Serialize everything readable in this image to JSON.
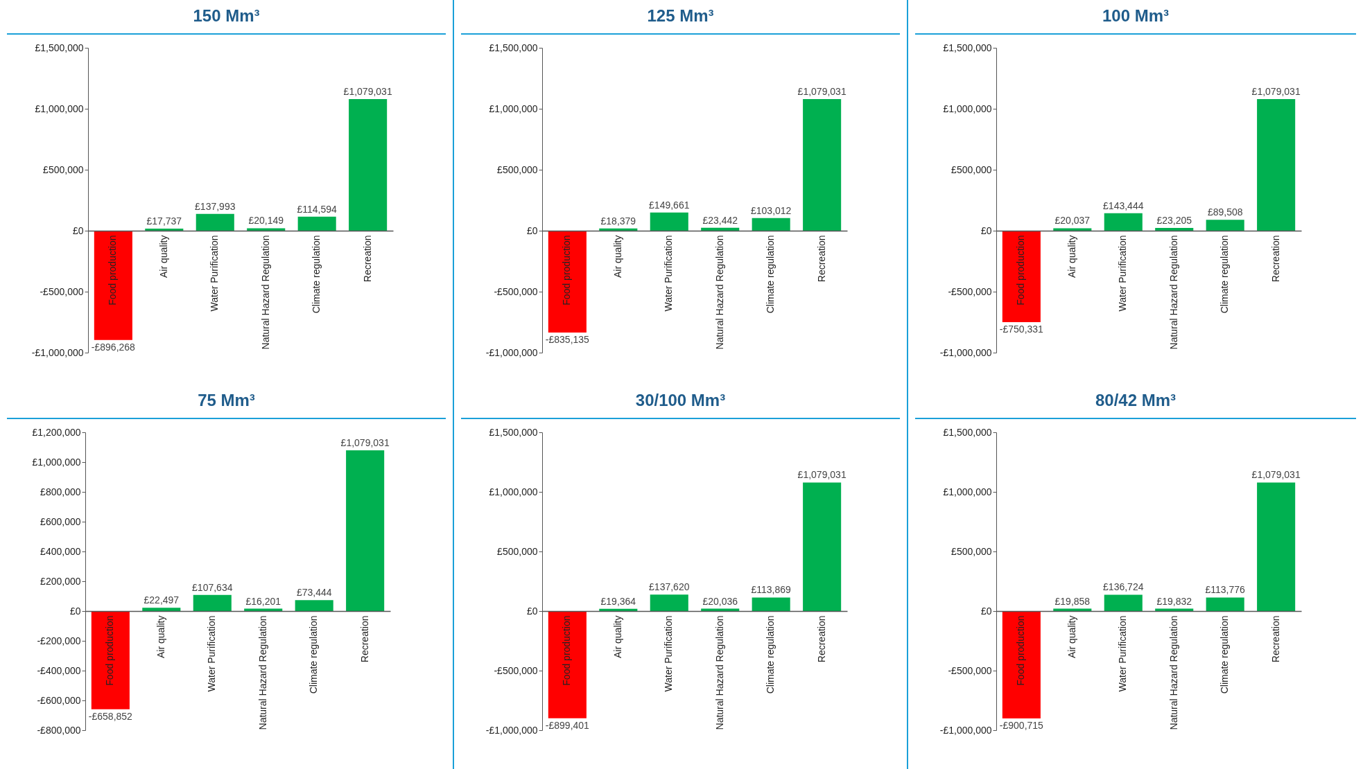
{
  "chart_data": [
    {
      "type": "bar",
      "title": "150 Mm³",
      "categories": [
        "Food production",
        "Air quality",
        "Water Purification",
        "Natural Hazard Regulation",
        "Climate regulation",
        "Recreation"
      ],
      "values": [
        -896268,
        17737,
        137993,
        20149,
        114594,
        1079031
      ],
      "colors": [
        "#ff0000",
        "#00b050",
        "#00b050",
        "#00b050",
        "#00b050",
        "#00b050"
      ],
      "value_labels": [
        "-£896,268",
        "£17,737",
        "£137,993",
        "£20,149",
        "£114,594",
        "£1,079,031"
      ],
      "ylim": [
        -1000000,
        1500000
      ],
      "yticks": [
        {
          "value": -1000000,
          "label": "-£1,000,000"
        },
        {
          "value": -500000,
          "label": "-£500,000"
        },
        {
          "value": 0,
          "label": "£0"
        },
        {
          "value": 500000,
          "label": "£500,000"
        },
        {
          "value": 1000000,
          "label": "£1,000,000"
        },
        {
          "value": 1500000,
          "label": "£1,500,000"
        }
      ]
    },
    {
      "type": "bar",
      "title": "125 Mm³",
      "categories": [
        "Food production",
        "Air quality",
        "Water Purification",
        "Natural Hazard Regulation",
        "Climate regulation",
        "Recreation"
      ],
      "values": [
        -835135,
        18379,
        149661,
        23442,
        103012,
        1079031
      ],
      "colors": [
        "#ff0000",
        "#00b050",
        "#00b050",
        "#00b050",
        "#00b050",
        "#00b050"
      ],
      "value_labels": [
        "-£835,135",
        "£18,379",
        "£149,661",
        "£23,442",
        "£103,012",
        "£1,079,031"
      ],
      "ylim": [
        -1000000,
        1500000
      ],
      "yticks": [
        {
          "value": -1000000,
          "label": "-£1,000,000"
        },
        {
          "value": -500000,
          "label": "-£500,000"
        },
        {
          "value": 0,
          "label": "£0"
        },
        {
          "value": 500000,
          "label": "£500,000"
        },
        {
          "value": 1000000,
          "label": "£1,000,000"
        },
        {
          "value": 1500000,
          "label": "£1,500,000"
        }
      ]
    },
    {
      "type": "bar",
      "title": "100 Mm³",
      "categories": [
        "Food production",
        "Air quality",
        "Water Purification",
        "Natural Hazard Regulation",
        "Climate regulation",
        "Recreation"
      ],
      "values": [
        -750331,
        20037,
        143444,
        23205,
        89508,
        1079031
      ],
      "colors": [
        "#ff0000",
        "#00b050",
        "#00b050",
        "#00b050",
        "#00b050",
        "#00b050"
      ],
      "value_labels": [
        "-£750,331",
        "£20,037",
        "£143,444",
        "£23,205",
        "£89,508",
        "£1,079,031"
      ],
      "ylim": [
        -1000000,
        1500000
      ],
      "yticks": [
        {
          "value": -1000000,
          "label": "-£1,000,000"
        },
        {
          "value": -500000,
          "label": "-£500,000"
        },
        {
          "value": 0,
          "label": "£0"
        },
        {
          "value": 500000,
          "label": "£500,000"
        },
        {
          "value": 1000000,
          "label": "£1,000,000"
        },
        {
          "value": 1500000,
          "label": "£1,500,000"
        }
      ]
    },
    {
      "type": "bar",
      "title": "75 Mm³",
      "categories": [
        "Food production",
        "Air quality",
        "Water Purification",
        "Natural Hazard Regulation",
        "Climate regulation",
        "Recreation"
      ],
      "values": [
        -658852,
        22497,
        107634,
        16201,
        73444,
        1079031
      ],
      "colors": [
        "#ff0000",
        "#00b050",
        "#00b050",
        "#00b050",
        "#00b050",
        "#00b050"
      ],
      "value_labels": [
        "-£658,852",
        "£22,497",
        "£107,634",
        "£16,201",
        "£73,444",
        "£1,079,031"
      ],
      "ylim": [
        -800000,
        1200000
      ],
      "yticks": [
        {
          "value": -800000,
          "label": "-£800,000"
        },
        {
          "value": -600000,
          "label": "-£600,000"
        },
        {
          "value": -400000,
          "label": "-£400,000"
        },
        {
          "value": -200000,
          "label": "-£200,000"
        },
        {
          "value": 0,
          "label": "£0"
        },
        {
          "value": 200000,
          "label": "£200,000"
        },
        {
          "value": 400000,
          "label": "£400,000"
        },
        {
          "value": 600000,
          "label": "£600,000"
        },
        {
          "value": 800000,
          "label": "£800,000"
        },
        {
          "value": 1000000,
          "label": "£1,000,000"
        },
        {
          "value": 1200000,
          "label": "£1,200,000"
        }
      ]
    },
    {
      "type": "bar",
      "title": "30/100 Mm³",
      "categories": [
        "Food production",
        "Air quality",
        "Water Purification",
        "Natural Hazard Regulation",
        "Climate regulation",
        "Recreation"
      ],
      "values": [
        -899401,
        19364,
        137620,
        20036,
        113869,
        1079031
      ],
      "colors": [
        "#ff0000",
        "#00b050",
        "#00b050",
        "#00b050",
        "#00b050",
        "#00b050"
      ],
      "value_labels": [
        "-£899,401",
        "£19,364",
        "£137,620",
        "£20,036",
        "£113,869",
        "£1,079,031"
      ],
      "ylim": [
        -1000000,
        1500000
      ],
      "yticks": [
        {
          "value": -1000000,
          "label": "-£1,000,000"
        },
        {
          "value": -500000,
          "label": "-£500,000"
        },
        {
          "value": 0,
          "label": "£0"
        },
        {
          "value": 500000,
          "label": "£500,000"
        },
        {
          "value": 1000000,
          "label": "£1,000,000"
        },
        {
          "value": 1500000,
          "label": "£1,500,000"
        }
      ]
    },
    {
      "type": "bar",
      "title": "80/42 Mm³",
      "categories": [
        "Food production",
        "Air quality",
        "Water Purification",
        "Natural Hazard Regulation",
        "Climate regulation",
        "Recreation"
      ],
      "values": [
        -900715,
        19858,
        136724,
        19832,
        113776,
        1079031
      ],
      "colors": [
        "#ff0000",
        "#00b050",
        "#00b050",
        "#00b050",
        "#00b050",
        "#00b050"
      ],
      "value_labels": [
        "-£900,715",
        "£19,858",
        "£136,724",
        "£19,832",
        "£113,776",
        "£1,079,031"
      ],
      "ylim": [
        -1000000,
        1500000
      ],
      "yticks": [
        {
          "value": -1000000,
          "label": "-£1,000,000"
        },
        {
          "value": -500000,
          "label": "-£500,000"
        },
        {
          "value": 0,
          "label": "£0"
        },
        {
          "value": 500000,
          "label": "£500,000"
        },
        {
          "value": 1000000,
          "label": "£1,000,000"
        },
        {
          "value": 1500000,
          "label": "£1,500,000"
        }
      ]
    }
  ]
}
